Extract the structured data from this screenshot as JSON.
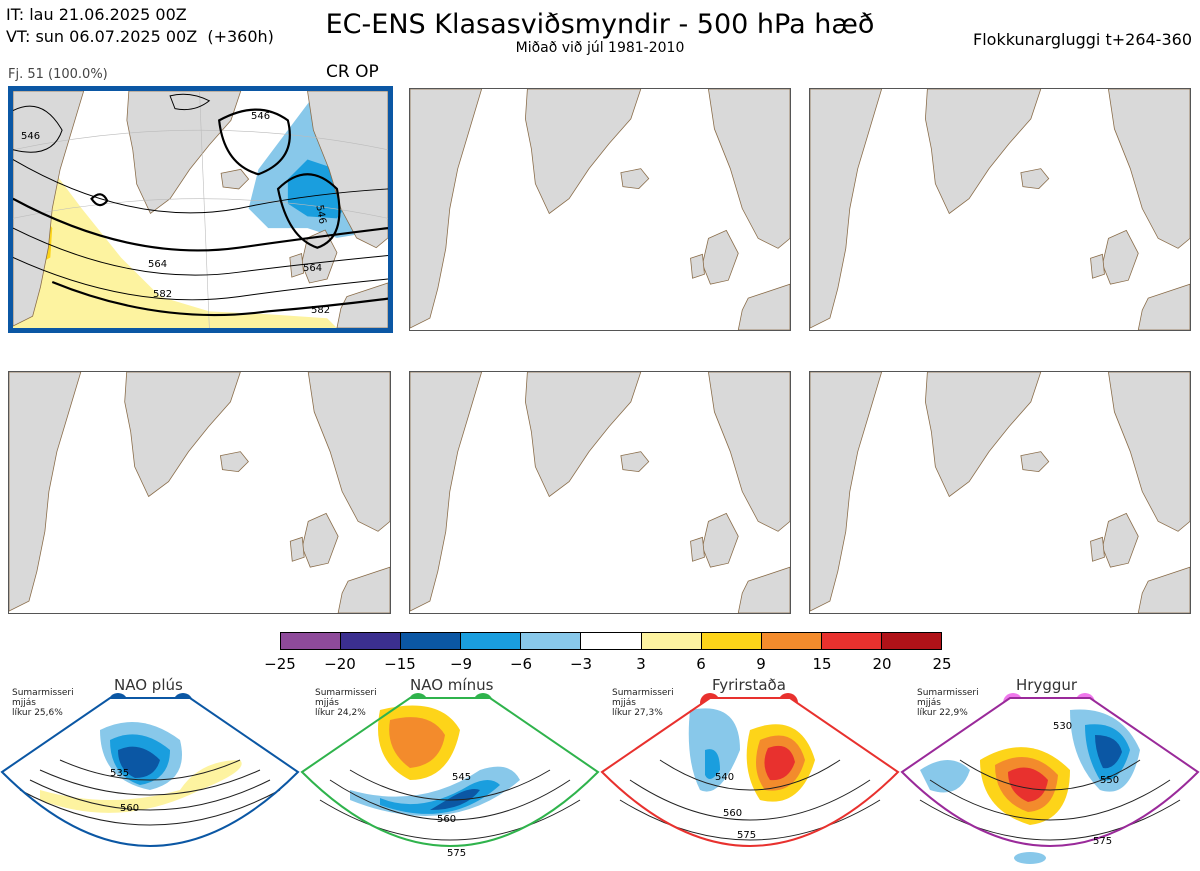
{
  "header": {
    "it_line": "IT: lau 21.06.2025 00Z",
    "vt_line": "VT: sun 06.07.2025 00Z  (+360h)",
    "title": "EC-ENS Klasasviðsmyndir - 500 hPa hæð",
    "subtitle": "Miðað við júl 1981-2010",
    "window": "Flokkunargluggi t+264-360"
  },
  "panel": {
    "members": "Fj. 51 (100.0%)",
    "tag": "CR OP",
    "contour_labels": [
      "546",
      "546",
      "546",
      "564",
      "564",
      "582",
      "582"
    ]
  },
  "colorbar": {
    "ticks": [
      "−25",
      "−20",
      "−15",
      "−9",
      "−6",
      "−3",
      "3",
      "6",
      "9",
      "15",
      "20",
      "25"
    ],
    "colors": [
      "#8e4a9a",
      "#3b2f8f",
      "#0b57a4",
      "#1a9ede",
      "#88c8ea",
      "#ffffff",
      "#fdf3a0",
      "#fdd419",
      "#f38b2c",
      "#e8312e",
      "#b01218"
    ]
  },
  "regimes": [
    {
      "name": "NAO plús",
      "season": "Sumarmisseri",
      "smoothing": "mjjás",
      "prob": "líkur 25,6%",
      "color": "#0b57a4",
      "labels": [
        "535",
        "560"
      ]
    },
    {
      "name": "NAO mínus",
      "season": "Sumarmisseri",
      "smoothing": "mjjás",
      "prob": "líkur 24,2%",
      "color": "#2fb34c",
      "labels": [
        "545",
        "560",
        "575"
      ]
    },
    {
      "name": "Fyrirstaða",
      "season": "Sumarmisseri",
      "smoothing": "mjjás",
      "prob": "líkur 27,3%",
      "color": "#e8312e",
      "labels": [
        "540",
        "560",
        "575"
      ]
    },
    {
      "name": "Hryggur",
      "season": "Sumarmisseri",
      "smoothing": "mjjás",
      "prob": "líkur 22,9%",
      "color": "#9a2a9a",
      "labels": [
        "530",
        "550",
        "575"
      ]
    }
  ]
}
